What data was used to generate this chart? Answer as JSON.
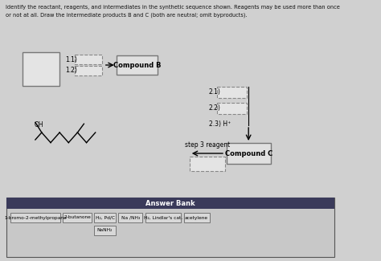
{
  "title_line1": "Identify the reactant, reagents, and intermediates in the synthetic sequence shown. Reagents may be used more than once",
  "title_line2": "or not at all. Draw the intermediate products B and C (both are neutral; omit byproducts).",
  "bg_color": "#d0d0d0",
  "answer_bank_bg": "#3a3a5a",
  "answer_bank_title": "Answer Bank",
  "answer_bank_items_row1": [
    "1-bromo-2-methylpropane",
    "2-butanone",
    "H₂, Pd/C",
    "Na /NH₃",
    "H₂, Lindlar's cat.",
    "acetylene"
  ],
  "answer_bank_items_row2": [
    "NaNH₂"
  ],
  "step1_1": "1.1)",
  "step1_2": "1.2)",
  "compound_b": "Compound B",
  "step2_1": "2.1)",
  "step2_2": "2.2)",
  "step2_3": "2.3) H⁺",
  "step3_reagent": "step 3 reagent",
  "compound_c": "Compound C",
  "oh_label": "OH"
}
